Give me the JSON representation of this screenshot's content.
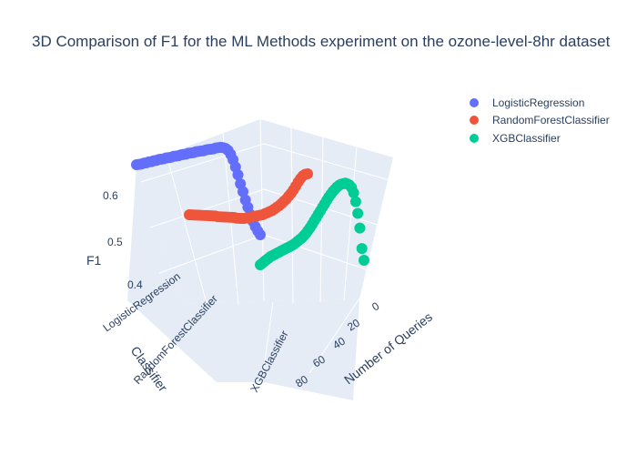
{
  "chart_data": {
    "type": "scatter3d",
    "title": "3D Comparison of F1 for the ML Methods experiment on the ozone-level-8hr dataset",
    "axes": {
      "x": {
        "title": "Number of Queries",
        "ticks": [
          "0",
          "20",
          "40",
          "60",
          "80"
        ],
        "range": [
          0,
          100
        ]
      },
      "y": {
        "title": "Classifier",
        "ticks": [
          "LogisticRegression",
          "RandomForestClassifier",
          "XGBClassifier"
        ]
      },
      "z": {
        "title": "F1",
        "ticks": [
          "0.4",
          "0.5",
          "0.6"
        ],
        "range": [
          0.38,
          0.68
        ]
      }
    },
    "legend_position": "top-right",
    "series": [
      {
        "name": "LogisticRegression",
        "color": "#636efa",
        "x": [
          0,
          2,
          4,
          6,
          8,
          10,
          12,
          14,
          16,
          18,
          20,
          22,
          24,
          26,
          28,
          30,
          32,
          34,
          36,
          38,
          40,
          42,
          44,
          46,
          48,
          50,
          52,
          54,
          56,
          58,
          60,
          62,
          64,
          66,
          68,
          70,
          72,
          74,
          76,
          78,
          80,
          82,
          84,
          86,
          88,
          90,
          92,
          94,
          96,
          98,
          100
        ],
        "y": [
          0.648,
          0.648,
          0.648,
          0.649,
          0.649,
          0.65,
          0.65,
          0.651,
          0.651,
          0.652,
          0.652,
          0.652,
          0.653,
          0.653,
          0.653,
          0.654,
          0.654,
          0.654,
          0.655,
          0.655,
          0.655,
          0.656,
          0.656,
          0.656,
          0.657,
          0.657,
          0.657,
          0.657,
          0.658,
          0.658,
          0.658,
          0.658,
          0.659,
          0.659,
          0.659,
          0.658,
          0.656,
          0.652,
          0.645,
          0.635,
          0.622,
          0.608,
          0.592,
          0.578,
          0.563,
          0.55,
          0.537,
          0.525,
          0.515,
          0.507,
          0.5
        ]
      },
      {
        "name": "RandomForestClassifier",
        "color": "#ef553b",
        "x": [
          0,
          2,
          4,
          6,
          8,
          10,
          12,
          14,
          16,
          18,
          20,
          22,
          24,
          26,
          28,
          30,
          32,
          34,
          36,
          38,
          40,
          42,
          44,
          46,
          48,
          50,
          52,
          54,
          56,
          58,
          60,
          62,
          64,
          66,
          68,
          70,
          72,
          74,
          76,
          78,
          80,
          82,
          84,
          86,
          88,
          90,
          92,
          94,
          96,
          98,
          100
        ],
        "y": [
          0.545,
          0.546,
          0.547,
          0.548,
          0.549,
          0.55,
          0.551,
          0.552,
          0.553,
          0.554,
          0.555,
          0.556,
          0.556,
          0.557,
          0.558,
          0.559,
          0.56,
          0.561,
          0.562,
          0.563,
          0.563,
          0.564,
          0.565,
          0.566,
          0.568,
          0.57,
          0.572,
          0.574,
          0.576,
          0.578,
          0.58,
          0.582,
          0.585,
          0.588,
          0.591,
          0.594,
          0.598,
          0.602,
          0.606,
          0.611,
          0.616,
          0.621,
          0.627,
          0.633,
          0.64,
          0.648,
          0.656,
          0.663,
          0.669,
          0.673,
          0.675
        ]
      },
      {
        "name": "XGBClassifier",
        "color": "#00cc96",
        "x": [
          0,
          2,
          4,
          6,
          8,
          10,
          12,
          14,
          16,
          18,
          20,
          22,
          24,
          26,
          28,
          30,
          32,
          34,
          36,
          38,
          40,
          42,
          44,
          46,
          48,
          50,
          52,
          54,
          56,
          58,
          60,
          62,
          64,
          66,
          68,
          70,
          72,
          74,
          76,
          78,
          80,
          82,
          84,
          86,
          88,
          90,
          92,
          94,
          96,
          98,
          100
        ],
        "y": [
          0.455,
          0.458,
          0.461,
          0.464,
          0.467,
          0.47,
          0.472,
          0.474,
          0.476,
          0.478,
          0.48,
          0.482,
          0.484,
          0.486,
          0.488,
          0.49,
          0.492,
          0.495,
          0.498,
          0.501,
          0.504,
          0.508,
          0.512,
          0.517,
          0.522,
          0.528,
          0.534,
          0.54,
          0.546,
          0.552,
          0.558,
          0.564,
          0.57,
          0.576,
          0.581,
          0.586,
          0.59,
          0.594,
          0.597,
          0.599,
          0.6,
          0.601,
          0.6,
          0.598,
          0.594,
          0.585,
          0.57,
          0.55,
          0.525,
          0.49,
          0.47
        ]
      }
    ]
  }
}
